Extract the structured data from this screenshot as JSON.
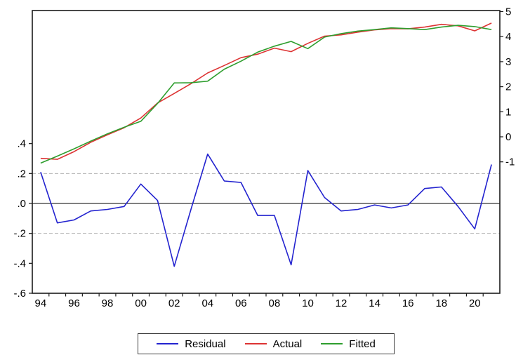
{
  "window": {
    "background": "#ffffff"
  },
  "chart_data": {
    "type": "line",
    "title": "",
    "xlabel": "",
    "ylabel_left": "",
    "ylabel_right": "",
    "x": [
      1994,
      1995,
      1996,
      1997,
      1998,
      1999,
      2000,
      2001,
      2002,
      2003,
      2004,
      2005,
      2006,
      2007,
      2008,
      2009,
      2010,
      2011,
      2012,
      2013,
      2014,
      2015,
      2016,
      2017,
      2018,
      2019,
      2020,
      2021
    ],
    "x_tick_labels": [
      "94",
      "96",
      "98",
      "00",
      "02",
      "04",
      "06",
      "08",
      "10",
      "12",
      "14",
      "16",
      "18",
      "20"
    ],
    "series": [
      {
        "name": "Residual",
        "axis": "left",
        "color": "#2323cf",
        "values": [
          0.21,
          -0.13,
          -0.11,
          -0.05,
          -0.04,
          -0.02,
          0.13,
          0.02,
          -0.42,
          -0.04,
          0.33,
          0.15,
          0.14,
          -0.08,
          -0.08,
          -0.41,
          0.22,
          0.04,
          -0.05,
          -0.04,
          -0.01,
          -0.03,
          -0.01,
          0.1,
          0.11,
          -0.02,
          -0.17,
          0.26
        ]
      },
      {
        "name": "Actual",
        "axis": "right",
        "color": "#dd3333",
        "values": [
          -0.86,
          -0.9,
          -0.59,
          -0.22,
          0.08,
          0.36,
          0.75,
          1.35,
          1.73,
          2.12,
          2.55,
          2.85,
          3.16,
          3.3,
          3.54,
          3.4,
          3.73,
          4.02,
          4.07,
          4.18,
          4.27,
          4.32,
          4.31,
          4.38,
          4.49,
          4.43,
          4.23,
          4.54
        ]
      },
      {
        "name": "Fitted",
        "axis": "right",
        "color": "#2e9e2e",
        "values": [
          -1.05,
          -0.77,
          -0.48,
          -0.17,
          0.12,
          0.38,
          0.62,
          1.33,
          2.15,
          2.16,
          2.22,
          2.7,
          3.02,
          3.38,
          3.62,
          3.81,
          3.52,
          3.98,
          4.12,
          4.22,
          4.28,
          4.35,
          4.32,
          4.28,
          4.38,
          4.45,
          4.4,
          4.28
        ]
      }
    ],
    "left_axis": {
      "tick_labels": [
        ".4",
        ".2",
        ".0",
        "-.2",
        "-.4",
        "-.6"
      ],
      "tick_values": [
        0.4,
        0.2,
        0.0,
        -0.2,
        -0.4,
        -0.6
      ],
      "range": [
        -0.6,
        1.289
      ]
    },
    "right_axis": {
      "tick_labels": [
        "5",
        "4",
        "3",
        "2",
        "1",
        "0",
        "-1"
      ],
      "tick_values": [
        5,
        4,
        3,
        2,
        1,
        0,
        -1
      ],
      "range": [
        -6.247,
        5.042
      ]
    },
    "reference_lines": {
      "zero_line_value": 0.0,
      "zero_line_color": "#000000",
      "dashed_band_values": [
        0.2,
        -0.2
      ],
      "dashed_band_color": "#b3b3b3"
    },
    "grid": "off",
    "legend": {
      "position": "bottom-center",
      "entries": [
        "Residual",
        "Actual",
        "Fitted"
      ]
    }
  }
}
